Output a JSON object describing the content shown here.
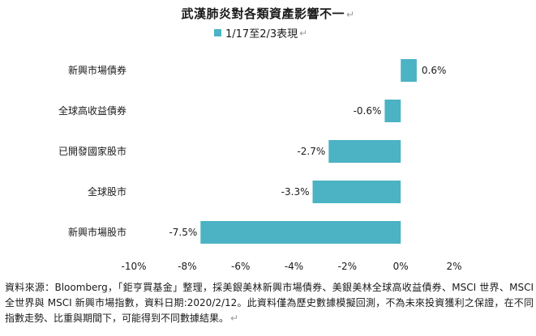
{
  "chart_data": {
    "type": "bar",
    "orientation": "horizontal",
    "title": "武漢肺炎對各類資產影響不一",
    "categories": [
      "新興市場債券",
      "全球高收益債券",
      "已開發國家股市",
      "全球股市",
      "新興市場股市"
    ],
    "series": [
      {
        "name": "1/17至2/3表現",
        "values": [
          0.6,
          -0.6,
          -2.7,
          -3.3,
          -7.5
        ],
        "value_labels": [
          "0.6%",
          "-0.6%",
          "-2.7%",
          "-3.3%",
          "-7.5%"
        ],
        "color": "#4bb3c3"
      }
    ],
    "xlim": [
      -10,
      2
    ],
    "xticks": [
      -10,
      -8,
      -6,
      -4,
      -2,
      0,
      2
    ],
    "xtick_labels": [
      "-10%",
      "-8%",
      "-6%",
      "-4%",
      "-2%",
      "0%",
      "2%"
    ],
    "xlabel": "",
    "ylabel": "",
    "grid": false,
    "legend_position": "top-center"
  },
  "para_mark": "↵",
  "source_note": "資料來源：Bloomberg，「鉅亨買基金」整理，採美銀美林新興市場債券、美銀美林全球高收益債券、MSCI 世界、MSCI 全世界與 MSCI 新興市場指數，資料日期:2020/2/12。此資料僅為歷史數據模擬回測，不為未來投資獲利之保證，在不同指數走勢、比重與期間下，可能得到不同數據結果。"
}
